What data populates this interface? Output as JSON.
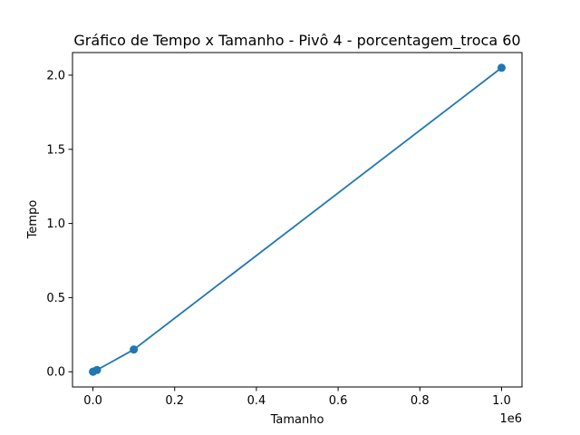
{
  "chart_data": {
    "type": "line",
    "title": "Gráfico de Tempo x Tamanho - Pivô 4 - porcentagem_troca 60",
    "xlabel": "Tamanho",
    "ylabel": "Tempo",
    "x_offset_label": "1e6",
    "x_scale_factor": 1000000,
    "xlim": [
      -50000,
      1050000
    ],
    "ylim": [
      -0.1025,
      2.1525
    ],
    "x_ticks": [
      0,
      200000,
      400000,
      600000,
      800000,
      1000000
    ],
    "x_tick_labels": [
      "0.0",
      "0.2",
      "0.4",
      "0.6",
      "0.8",
      "1.0"
    ],
    "y_ticks": [
      0,
      0.5,
      1.0,
      1.5,
      2.0
    ],
    "y_tick_labels": [
      "0.0",
      "0.5",
      "1.0",
      "1.5",
      "2.0"
    ],
    "grid": false,
    "legend": "none",
    "series": [
      {
        "color": "#1f77b4",
        "marker": "circle",
        "x": [
          100,
          1000,
          10000,
          100000,
          1000000
        ],
        "y": [
          0.0002,
          0.0015,
          0.012,
          0.15,
          2.05
        ]
      }
    ]
  }
}
